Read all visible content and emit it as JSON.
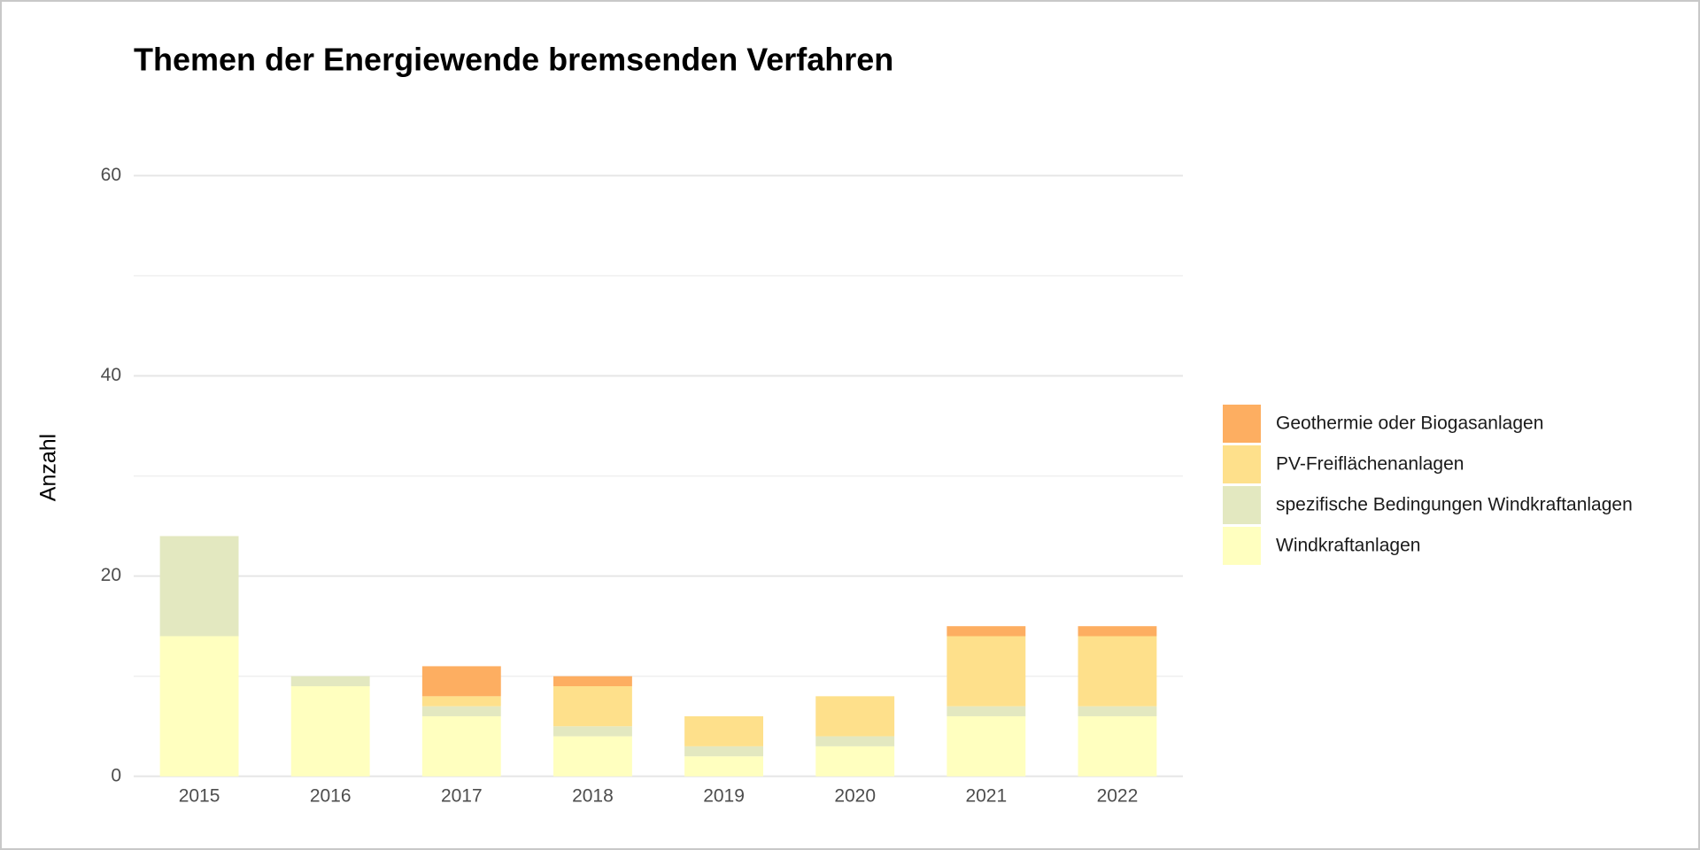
{
  "chart_data": {
    "type": "stacked_bar",
    "title": "Themen der Energiewende bremsenden Verfahren",
    "y_label": "Anzahl",
    "categories": [
      "2015",
      "2016",
      "2017",
      "2018",
      "2019",
      "2020",
      "2021",
      "2022"
    ],
    "series": [
      {
        "name": "Windkraftanlagen",
        "color": "#ffffbf",
        "values": [
          14,
          9,
          6,
          4,
          2,
          3,
          6,
          6
        ]
      },
      {
        "name": "spezifische Bedingungen Windkraftanlagen",
        "color": "#e3e8c0",
        "values": [
          10,
          1,
          1,
          1,
          1,
          1,
          1,
          1
        ]
      },
      {
        "name": "PV-Freiflächenanlagen",
        "color": "#fee08b",
        "values": [
          0,
          0,
          1,
          4,
          3,
          4,
          7,
          7
        ]
      },
      {
        "name": "Geothermie oder Biogasanlagen",
        "color": "#fdae61",
        "values": [
          0,
          0,
          3,
          1,
          0,
          0,
          1,
          1
        ]
      }
    ],
    "ylim": [
      0,
      60
    ],
    "yticks": [
      0,
      20,
      40,
      60
    ],
    "minor_yticks": [
      10,
      30,
      50
    ],
    "grid": true,
    "legend": "right"
  }
}
